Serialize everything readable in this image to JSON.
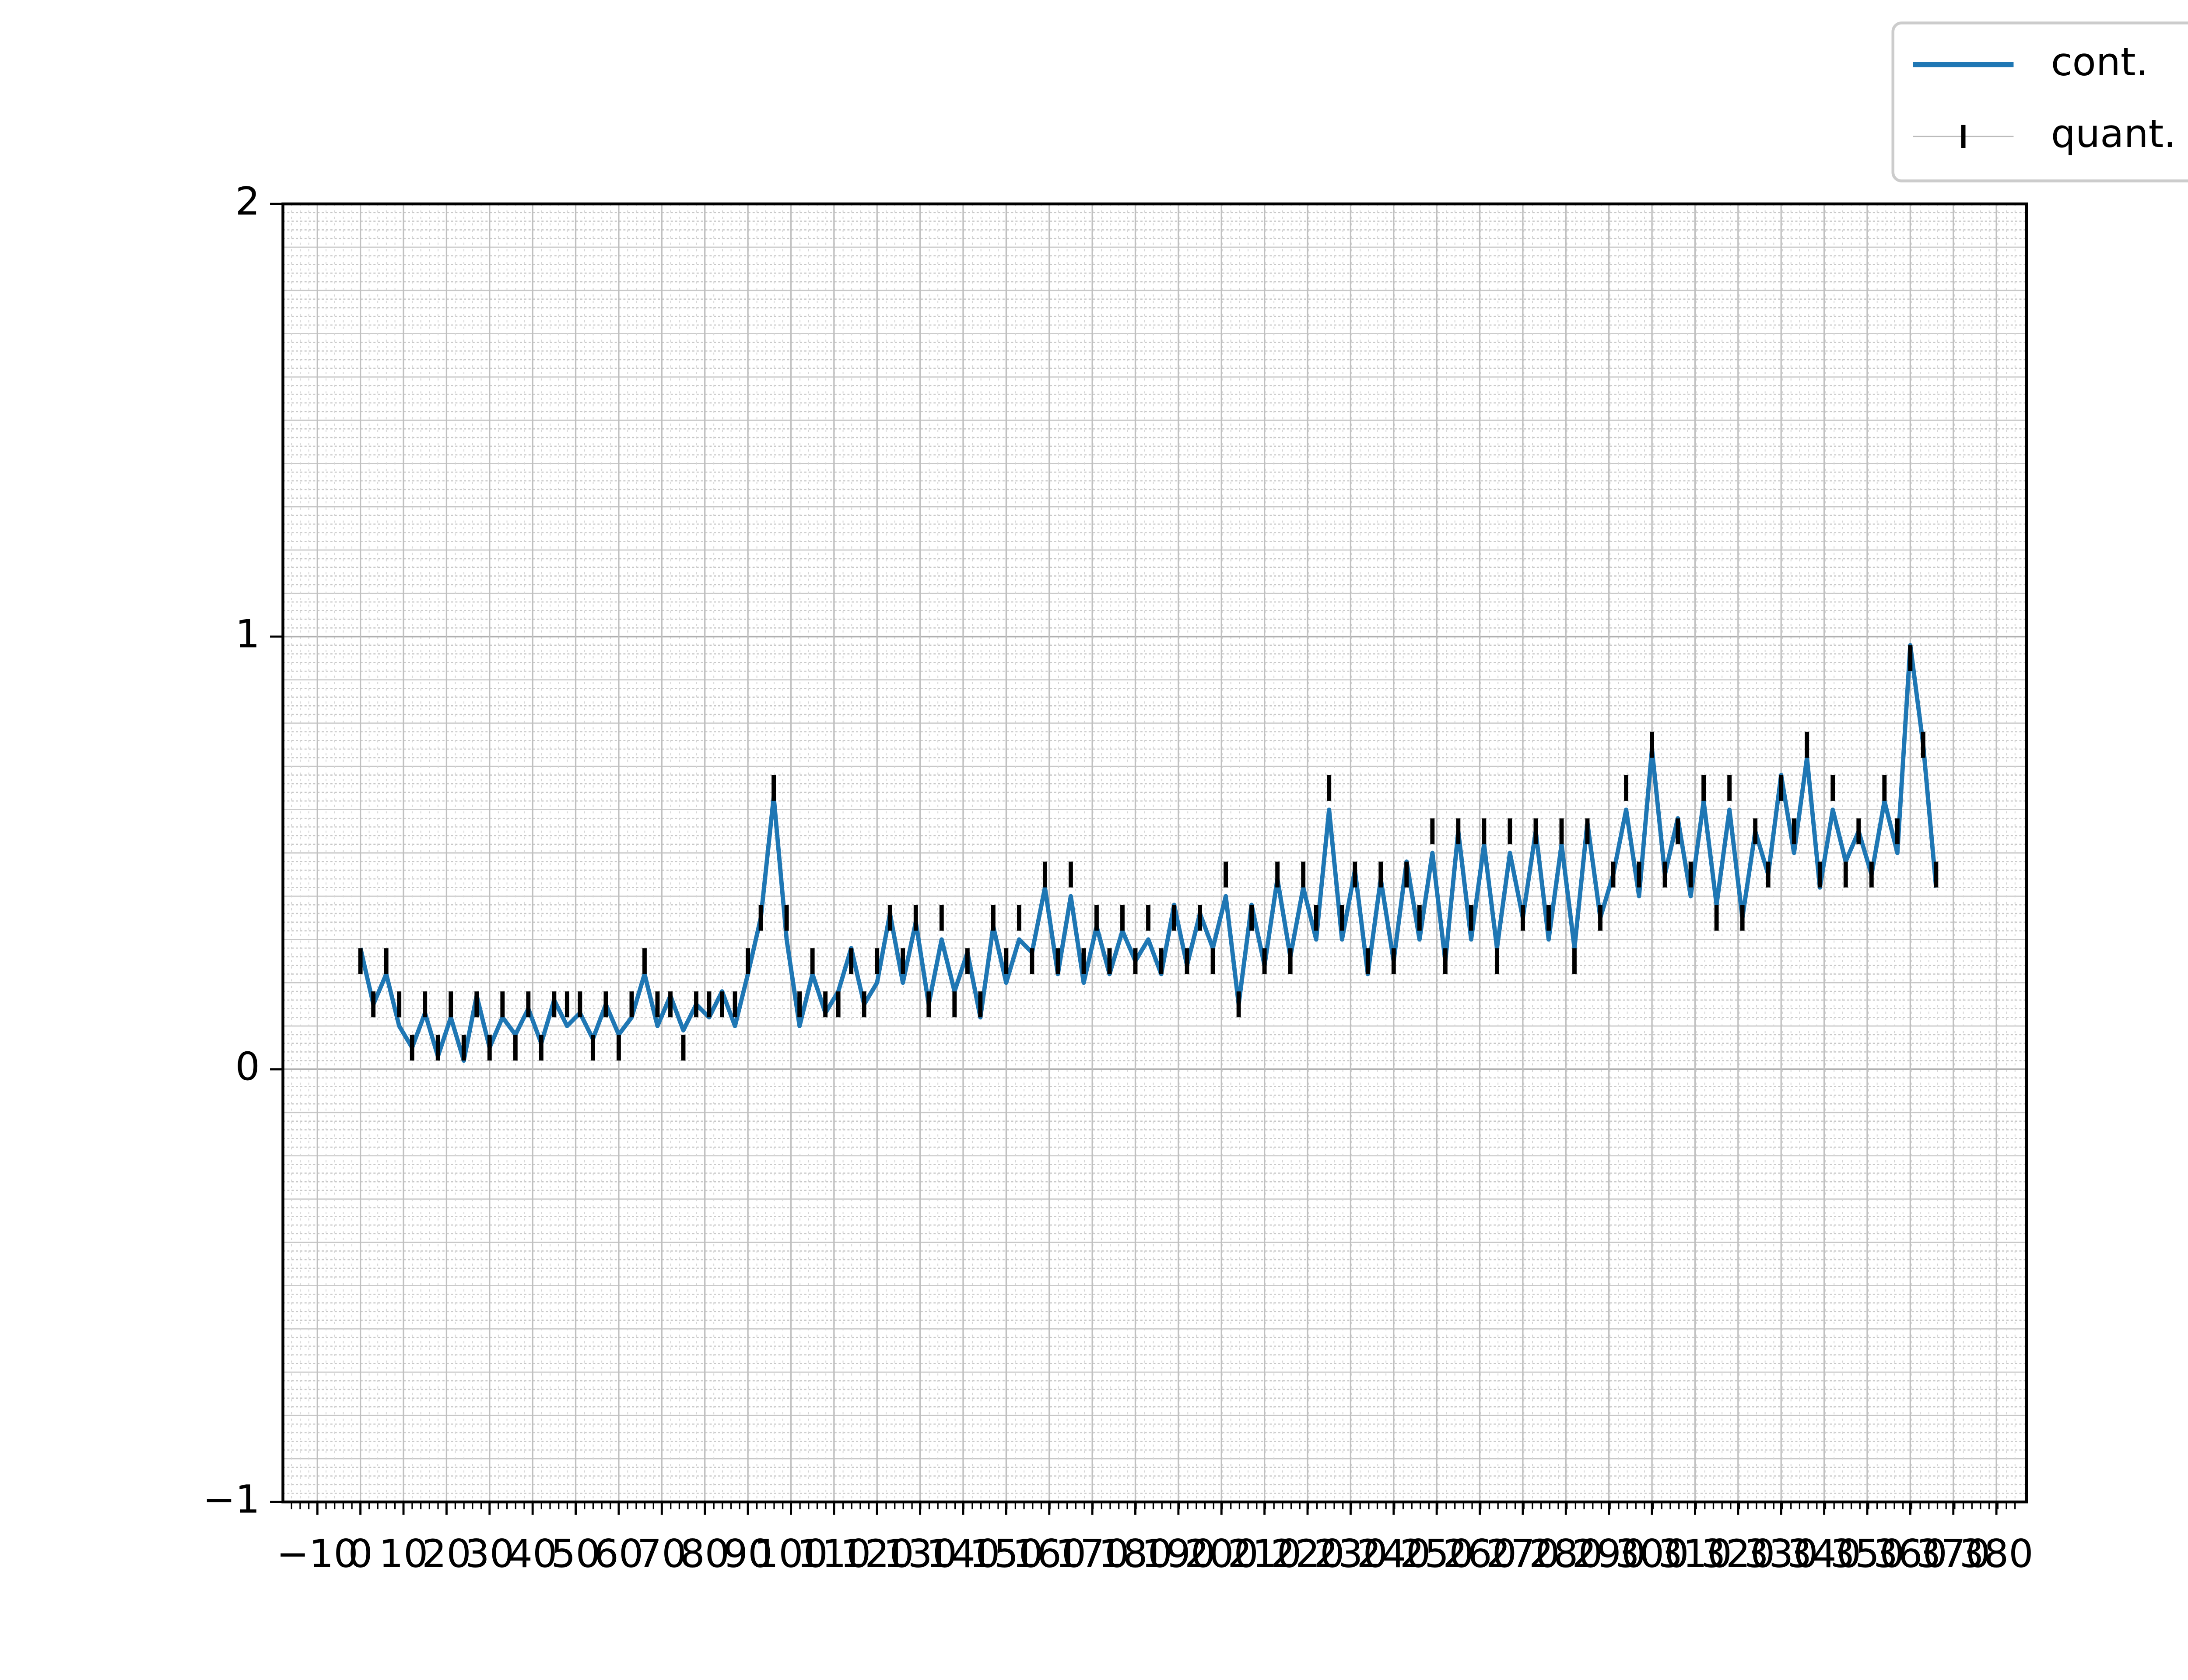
{
  "chart_data": {
    "type": "line",
    "x": [
      0,
      3,
      6,
      9,
      12,
      15,
      18,
      21,
      24,
      27,
      30,
      33,
      36,
      39,
      42,
      45,
      48,
      51,
      54,
      57,
      60,
      63,
      66,
      69,
      72,
      75,
      78,
      81,
      84,
      87,
      90,
      93,
      96,
      99,
      102,
      105,
      108,
      111,
      114,
      117,
      120,
      123,
      126,
      129,
      132,
      135,
      138,
      141,
      144,
      147,
      150,
      153,
      156,
      159,
      162,
      165,
      168,
      171,
      174,
      177,
      180,
      183,
      186,
      189,
      192,
      195,
      198,
      201,
      204,
      207,
      210,
      213,
      216,
      219,
      222,
      225,
      228,
      231,
      234,
      237,
      240,
      243,
      246,
      249,
      252,
      255,
      258,
      261,
      264,
      267,
      270,
      273,
      276,
      279,
      282,
      285,
      288,
      291,
      294,
      297,
      300,
      303,
      306,
      309,
      312,
      315,
      318,
      321,
      324,
      327,
      330,
      333,
      336,
      339,
      342,
      345,
      348,
      351,
      354,
      357,
      360,
      363,
      366
    ],
    "series": [
      {
        "name": "cont.",
        "color": "#1f77b4",
        "values": [
          0.28,
          0.15,
          0.22,
          0.1,
          0.05,
          0.13,
          0.03,
          0.12,
          0.02,
          0.17,
          0.05,
          0.12,
          0.08,
          0.14,
          0.06,
          0.16,
          0.1,
          0.13,
          0.07,
          0.15,
          0.08,
          0.12,
          0.22,
          0.1,
          0.17,
          0.09,
          0.15,
          0.12,
          0.18,
          0.1,
          0.22,
          0.35,
          0.63,
          0.3,
          0.1,
          0.22,
          0.13,
          0.18,
          0.28,
          0.15,
          0.2,
          0.36,
          0.2,
          0.34,
          0.15,
          0.3,
          0.18,
          0.27,
          0.12,
          0.33,
          0.2,
          0.3,
          0.27,
          0.42,
          0.22,
          0.4,
          0.2,
          0.33,
          0.22,
          0.32,
          0.25,
          0.3,
          0.22,
          0.38,
          0.24,
          0.36,
          0.28,
          0.4,
          0.15,
          0.38,
          0.24,
          0.44,
          0.26,
          0.42,
          0.3,
          0.6,
          0.3,
          0.46,
          0.22,
          0.44,
          0.25,
          0.48,
          0.3,
          0.5,
          0.25,
          0.55,
          0.3,
          0.52,
          0.28,
          0.5,
          0.35,
          0.55,
          0.3,
          0.52,
          0.28,
          0.57,
          0.35,
          0.45,
          0.6,
          0.4,
          0.74,
          0.45,
          0.58,
          0.4,
          0.62,
          0.38,
          0.6,
          0.35,
          0.55,
          0.45,
          0.68,
          0.5,
          0.72,
          0.42,
          0.6,
          0.48,
          0.55,
          0.45,
          0.62,
          0.5,
          0.98,
          0.75,
          0.42
        ]
      },
      {
        "name": "quant.",
        "color": "#000000",
        "marker": "|",
        "values": [
          0.25,
          0.15,
          0.25,
          0.15,
          0.05,
          0.15,
          0.05,
          0.15,
          0.05,
          0.15,
          0.05,
          0.15,
          0.05,
          0.15,
          0.05,
          0.15,
          0.15,
          0.15,
          0.05,
          0.15,
          0.05,
          0.15,
          0.25,
          0.15,
          0.15,
          0.05,
          0.15,
          0.15,
          0.15,
          0.15,
          0.25,
          0.35,
          0.65,
          0.35,
          0.15,
          0.25,
          0.15,
          0.15,
          0.25,
          0.15,
          0.25,
          0.35,
          0.25,
          0.35,
          0.15,
          0.35,
          0.15,
          0.25,
          0.15,
          0.35,
          0.25,
          0.35,
          0.25,
          0.45,
          0.25,
          0.45,
          0.25,
          0.35,
          0.25,
          0.35,
          0.25,
          0.35,
          0.25,
          0.35,
          0.25,
          0.35,
          0.25,
          0.45,
          0.15,
          0.35,
          0.25,
          0.45,
          0.25,
          0.45,
          0.35,
          0.65,
          0.35,
          0.45,
          0.25,
          0.45,
          0.25,
          0.45,
          0.35,
          0.55,
          0.25,
          0.55,
          0.35,
          0.55,
          0.25,
          0.55,
          0.35,
          0.55,
          0.35,
          0.55,
          0.25,
          0.55,
          0.35,
          0.45,
          0.65,
          0.45,
          0.75,
          0.45,
          0.55,
          0.45,
          0.65,
          0.35,
          0.65,
          0.35,
          0.55,
          0.45,
          0.65,
          0.55,
          0.75,
          0.45,
          0.65,
          0.45,
          0.55,
          0.45,
          0.65,
          0.55,
          0.95,
          0.75,
          0.45
        ]
      }
    ],
    "xlim": [
      -18,
      387
    ],
    "xticks": [
      {
        "value": -10,
        "label": "−10"
      },
      0,
      10,
      20,
      30,
      40,
      50,
      60,
      70,
      80,
      90,
      100,
      110,
      120,
      130,
      140,
      150,
      160,
      170,
      180,
      190,
      200,
      210,
      220,
      230,
      240,
      250,
      260,
      270,
      280,
      290,
      300,
      310,
      320,
      330,
      340,
      350,
      360,
      370,
      380
    ],
    "ylim": [
      -1,
      2
    ],
    "yticks": [
      {
        "value": -1,
        "label": "−1"
      },
      0,
      1,
      2
    ],
    "grid": true,
    "legend": "upper right"
  }
}
